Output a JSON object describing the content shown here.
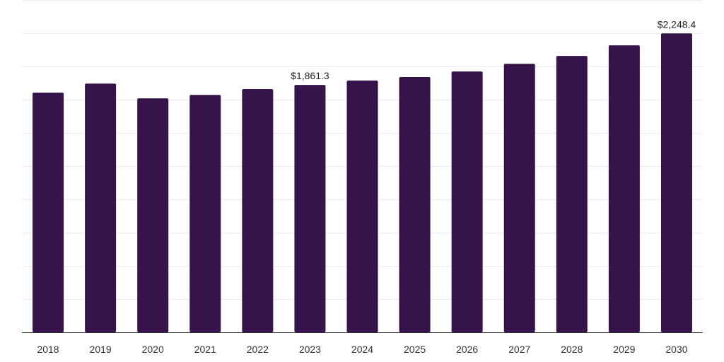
{
  "chart_data": {
    "type": "bar",
    "categories": [
      "2018",
      "2019",
      "2020",
      "2021",
      "2022",
      "2023",
      "2024",
      "2025",
      "2026",
      "2027",
      "2028",
      "2029",
      "2030"
    ],
    "values": [
      1803,
      1871,
      1760,
      1786,
      1830,
      1861.3,
      1894,
      1920,
      1962,
      2020,
      2079,
      2159,
      2248.4
    ],
    "data_labels": [
      {
        "category": "2023",
        "text": "$1,861.3"
      },
      {
        "category": "2030",
        "text": "$2,248.4"
      }
    ],
    "ylim": [
      0,
      2500
    ],
    "grid": true,
    "title": "",
    "xlabel": "",
    "ylabel": "",
    "colors": {
      "bar": "#36134a",
      "grid": "#ebebeb",
      "axis": "#333333"
    }
  }
}
